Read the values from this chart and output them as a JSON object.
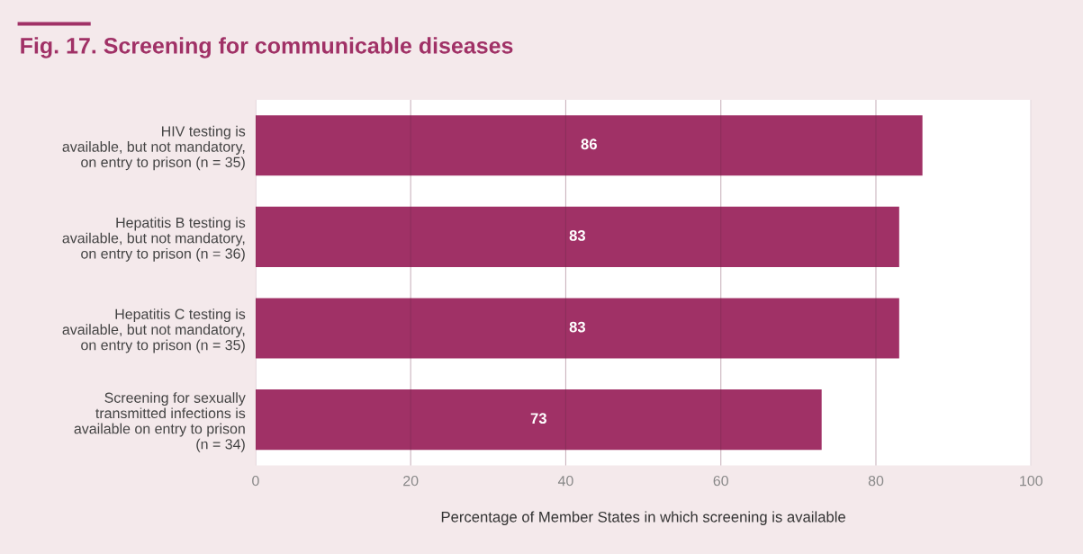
{
  "chart_data": {
    "type": "bar",
    "orientation": "horizontal",
    "title": "Fig. 17. Screening for communicable diseases",
    "xlabel": "Percentage of Member States in which screening is available",
    "categories": [
      "HIV testing is\navailable, but not mandatory,\non entry to prison (n = 35)",
      "Hepatitis B testing is\navailable, but not mandatory,\non entry to prison (n = 36)",
      "Hepatitis C testing is\navailable, but not mandatory,\non entry to prison (n = 35)",
      "Screening for sexually\ntransmitted infections is\navailable on entry to prison\n(n = 34)"
    ],
    "values": [
      86,
      83,
      83,
      73
    ],
    "color": "#a03166",
    "data_labels": true,
    "xlim": [
      0,
      100
    ],
    "xticks": [
      0,
      20,
      40,
      60,
      80,
      100
    ],
    "grid": "x"
  }
}
